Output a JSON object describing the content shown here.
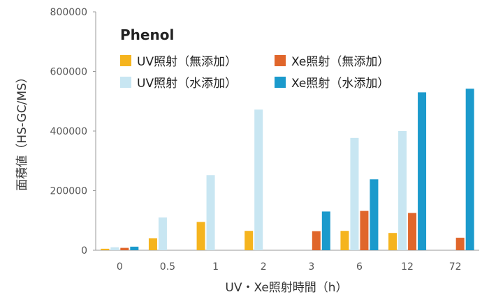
{
  "chart_data": {
    "type": "bar",
    "xlabel": "UV・Xe照射時間（h）",
    "ylabel": "面積値（HS-GC/MS）",
    "legend_title": "Phenol",
    "ylim": [
      0,
      800000
    ],
    "yticks": [
      "0",
      "200000",
      "400000",
      "600000",
      "800000"
    ],
    "categories": [
      "0",
      "0.5",
      "1",
      "2",
      "3",
      "6",
      "12",
      "72"
    ],
    "series": [
      {
        "name": "UV照射（無添加）",
        "color": "#f5b41e",
        "values": [
          5000,
          40000,
          95000,
          65000,
          null,
          65000,
          58000,
          null
        ]
      },
      {
        "name": "UV照射（水添加）",
        "color": "#c8e6f2",
        "values": [
          10000,
          110000,
          252000,
          472000,
          null,
          377000,
          400000,
          null
        ]
      },
      {
        "name": "Xe照射（無添加）",
        "color": "#e0662b",
        "values": [
          8000,
          null,
          null,
          null,
          64000,
          132000,
          125000,
          42000
        ]
      },
      {
        "name": "Xe照射（水添加）",
        "color": "#1b9acc",
        "values": [
          12000,
          null,
          null,
          null,
          130000,
          238000,
          530000,
          542000
        ]
      }
    ],
    "legend_placement": "top-left",
    "grid": false
  }
}
